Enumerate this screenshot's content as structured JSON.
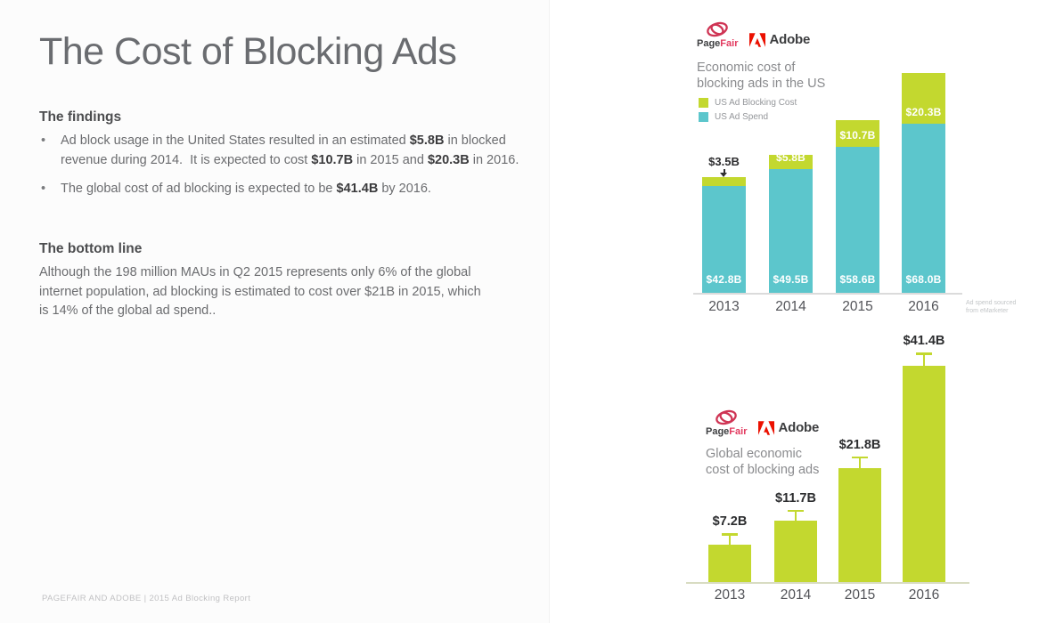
{
  "slide": {
    "title": "The Cost of Blocking Ads",
    "findings": {
      "heading": "The findings",
      "bullet1": {
        "t1": "Ad block usage in the United States resulted in an estimated ",
        "b1": "$5.8B",
        "t2": " in blocked revenue during 2014.  It is expected to cost ",
        "b2": "$10.7B",
        "t3": " in 2015 and ",
        "b3": "$20.3B",
        "t4": " in 2016."
      },
      "bullet2": {
        "t1": "The global cost of ad blocking is expected to be ",
        "b1": "$41.4B",
        "t2": " by 2016."
      }
    },
    "bottom_line": {
      "heading": "The bottom line",
      "text": "Although the 198 million MAUs in Q2 2015 represents only 6% of the global internet population, ad blocking is estimated to cost over $21B in 2015, which is 14% of the global ad spend.."
    },
    "footer": "PAGEFAIR AND ADOBE | 2015 Ad Blocking Report"
  },
  "brand": {
    "pagefair_page": "Page",
    "pagefair_fair": "Fair",
    "adobe": "Adobe"
  },
  "colors": {
    "lime": "#c3d82f",
    "teal": "#5cc6cc",
    "pagefair_red": "#cf3454",
    "adobe_red": "#eb1000",
    "label_dark": "#2e2e30",
    "label_white": "#ffffff"
  },
  "chart_data": [
    {
      "type": "bar",
      "variant": "stacked",
      "title_line1": "Economic cost of",
      "title_line2": "blocking ads in the US",
      "categories": [
        "2013",
        "2014",
        "2015",
        "2016"
      ],
      "series": [
        {
          "name": "US Ad Blocking Cost",
          "color": "#c3d82f",
          "values": [
            3.5,
            5.8,
            10.7,
            20.3
          ],
          "labels": [
            "$3.5B",
            "$5.8B",
            "$10.7B",
            "$20.3B"
          ]
        },
        {
          "name": "US Ad Spend",
          "color": "#5cc6cc",
          "values": [
            42.8,
            49.5,
            58.6,
            68.0
          ],
          "labels": [
            "$42.8B",
            "$49.5B",
            "$58.6B",
            "$68.0B"
          ]
        }
      ],
      "unit": "USD billions",
      "ylim": [
        0,
        90
      ],
      "grid": false,
      "legend_position": "top-left",
      "note_line1": "Ad spend sourced",
      "note_line2": "from eMarketer"
    },
    {
      "type": "bar",
      "variant": "single-series-error-bars",
      "title_line1": "Global economic",
      "title_line2": "cost of blocking ads",
      "categories": [
        "2013",
        "2014",
        "2015",
        "2016"
      ],
      "values": [
        7.2,
        11.7,
        21.8,
        41.4
      ],
      "labels": [
        "$7.2B",
        "$11.7B",
        "$21.8B",
        "$41.4B"
      ],
      "estimate": [
        false,
        false,
        true,
        true
      ],
      "color": "#c3d82f",
      "unit": "USD billions",
      "ylim": [
        0,
        45
      ],
      "grid": false
    }
  ]
}
